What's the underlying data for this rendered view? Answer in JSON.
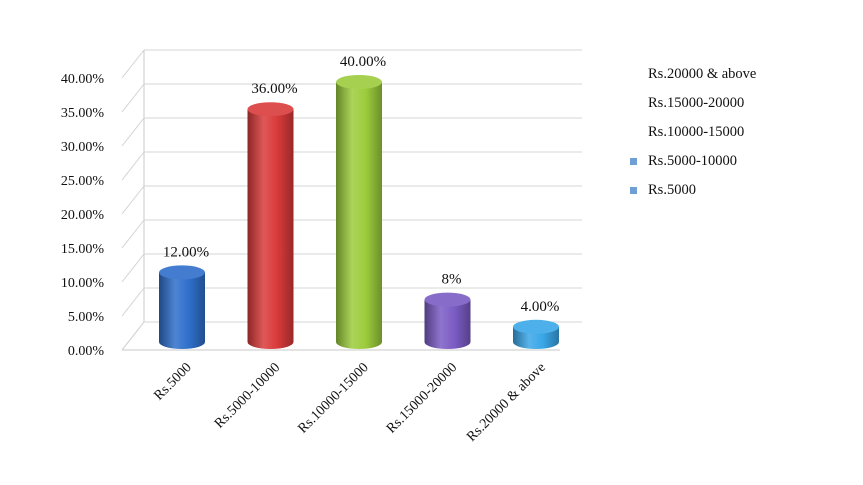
{
  "chart_data": {
    "type": "bar",
    "categories": [
      "Rs.5000",
      "Rs.5000-10000",
      "Rs.10000-15000",
      "Rs.15000-20000",
      "Rs.20000 & above"
    ],
    "values": [
      12,
      36,
      40,
      8,
      4
    ],
    "data_labels": [
      "12.00%",
      "36.00%",
      "40.00%",
      "8%",
      "4.00%"
    ],
    "bar_colors": [
      "#2f6fcb",
      "#d93a3a",
      "#9ccc3c",
      "#7b5cc4",
      "#3aa7e8"
    ],
    "ylim": [
      0,
      40
    ],
    "y_ticks": [
      "0.00%",
      "5.00%",
      "10.00%",
      "15.00%",
      "20.00%",
      "25.00%",
      "30.00%",
      "35.00%",
      "40.00%"
    ],
    "grid": true,
    "style": "3d-cylinder",
    "legend_position": "top-right",
    "legend": [
      {
        "label": "Rs.20000 & above",
        "color": ""
      },
      {
        "label": "Rs.15000-20000",
        "color": ""
      },
      {
        "label": "Rs.10000-15000",
        "color": ""
      },
      {
        "label": "Rs.5000-10000",
        "color": "#6f9fd6"
      },
      {
        "label": "Rs.5000",
        "color": "#6f9fd6"
      }
    ]
  }
}
